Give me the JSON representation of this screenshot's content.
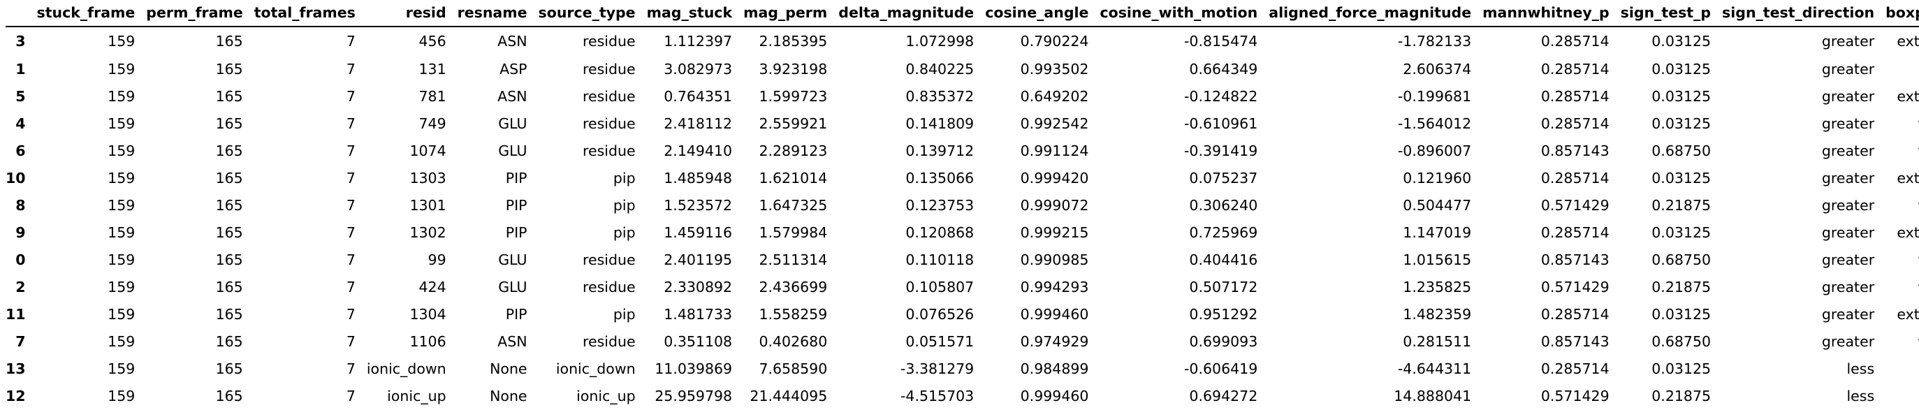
{
  "columns": [
    "",
    "stuck_frame",
    "perm_frame",
    "total_frames",
    "resid",
    "resname",
    "source_type",
    "mag_stuck",
    "mag_perm",
    "delta_magnitude",
    "cosine_angle",
    "cosine_with_motion",
    "aligned_force_magnitude",
    "mannwhitney_p",
    "sign_test_p",
    "sign_test_direction",
    "boxplot_outlier"
  ],
  "rows": [
    [
      "3",
      "159",
      "165",
      "7",
      "456",
      "ASN",
      "residue",
      "1.112397",
      "2.185395",
      "1.072998",
      "0.790224",
      "-0.815474",
      "-1.782133",
      "0.285714",
      "0.03125",
      "greater",
      "extreme outlier"
    ],
    [
      "1",
      "159",
      "165",
      "7",
      "131",
      "ASP",
      "residue",
      "3.082973",
      "3.923198",
      "0.840225",
      "0.993502",
      "0.664349",
      "2.606374",
      "0.285714",
      "0.03125",
      "greater",
      "mild outlier"
    ],
    [
      "5",
      "159",
      "165",
      "7",
      "781",
      "ASN",
      "residue",
      "0.764351",
      "1.599723",
      "0.835372",
      "0.649202",
      "-0.124822",
      "-0.199681",
      "0.285714",
      "0.03125",
      "greater",
      "extreme outlier"
    ],
    [
      "4",
      "159",
      "165",
      "7",
      "749",
      "GLU",
      "residue",
      "2.418112",
      "2.559921",
      "0.141809",
      "0.992542",
      "-0.610961",
      "-1.564012",
      "0.285714",
      "0.03125",
      "greater",
      "within range"
    ],
    [
      "6",
      "159",
      "165",
      "7",
      "1074",
      "GLU",
      "residue",
      "2.149410",
      "2.289123",
      "0.139712",
      "0.991124",
      "-0.391419",
      "-0.896007",
      "0.857143",
      "0.68750",
      "greater",
      "within range"
    ],
    [
      "10",
      "159",
      "165",
      "7",
      "1303",
      "PIP",
      "pip",
      "1.485948",
      "1.621014",
      "0.135066",
      "0.999420",
      "0.075237",
      "0.121960",
      "0.285714",
      "0.03125",
      "greater",
      "extreme outlier"
    ],
    [
      "8",
      "159",
      "165",
      "7",
      "1301",
      "PIP",
      "pip",
      "1.523572",
      "1.647325",
      "0.123753",
      "0.999072",
      "0.306240",
      "0.504477",
      "0.571429",
      "0.21875",
      "greater",
      "within range"
    ],
    [
      "9",
      "159",
      "165",
      "7",
      "1302",
      "PIP",
      "pip",
      "1.459116",
      "1.579984",
      "0.120868",
      "0.999215",
      "0.725969",
      "1.147019",
      "0.285714",
      "0.03125",
      "greater",
      "extreme outlier"
    ],
    [
      "0",
      "159",
      "165",
      "7",
      "99",
      "GLU",
      "residue",
      "2.401195",
      "2.511314",
      "0.110118",
      "0.990985",
      "0.404416",
      "1.015615",
      "0.857143",
      "0.68750",
      "greater",
      "within range"
    ],
    [
      "2",
      "159",
      "165",
      "7",
      "424",
      "GLU",
      "residue",
      "2.330892",
      "2.436699",
      "0.105807",
      "0.994293",
      "0.507172",
      "1.235825",
      "0.571429",
      "0.21875",
      "greater",
      "within range"
    ],
    [
      "11",
      "159",
      "165",
      "7",
      "1304",
      "PIP",
      "pip",
      "1.481733",
      "1.558259",
      "0.076526",
      "0.999460",
      "0.951292",
      "1.482359",
      "0.285714",
      "0.03125",
      "greater",
      "extreme outlier"
    ],
    [
      "7",
      "159",
      "165",
      "7",
      "1106",
      "ASN",
      "residue",
      "0.351108",
      "0.402680",
      "0.051571",
      "0.974929",
      "0.699093",
      "0.281511",
      "0.857143",
      "0.68750",
      "greater",
      "within range"
    ],
    [
      "13",
      "159",
      "165",
      "7",
      "ionic_down",
      "None",
      "ionic_down",
      "11.039869",
      "7.658590",
      "-3.381279",
      "0.984899",
      "-0.606419",
      "-4.644311",
      "0.285714",
      "0.03125",
      "less",
      "mild outlier"
    ],
    [
      "12",
      "159",
      "165",
      "7",
      "ionic_up",
      "None",
      "ionic_up",
      "25.959798",
      "21.444095",
      "-4.515703",
      "0.999460",
      "0.694272",
      "14.888041",
      "0.571429",
      "0.21875",
      "less",
      "mild outlier"
    ]
  ]
}
